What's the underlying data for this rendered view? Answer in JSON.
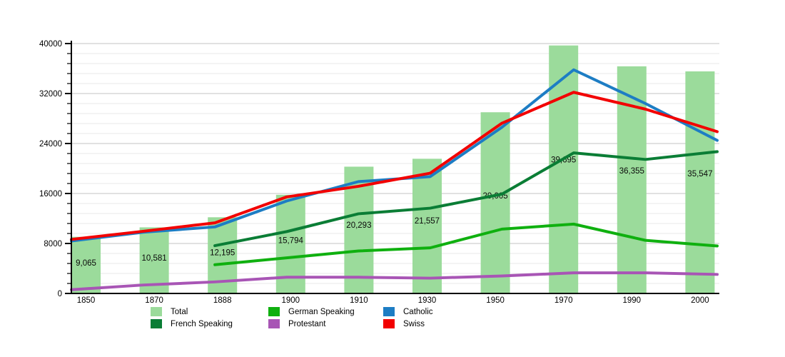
{
  "chart_data": {
    "type": "bar+line",
    "title": "",
    "xlabel": "",
    "ylabel": "",
    "ylim": [
      0,
      40000
    ],
    "y_ticks": [
      0,
      8000,
      16000,
      24000,
      32000,
      40000
    ],
    "y_tick_labels": [
      "0",
      "8000",
      "16000",
      "24000",
      "32000",
      "40000"
    ],
    "y_minor_step": 1600,
    "grid": true,
    "legend_position": "bottom",
    "x_categories": [
      "1850",
      "1870",
      "1888",
      "1900",
      "1910",
      "1930",
      "1950",
      "1970",
      "1990",
      "2000"
    ],
    "bar_series": {
      "name": "Total",
      "color": "#9bdb9b",
      "values": [
        9065,
        10581,
        12195,
        15794,
        20293,
        21557,
        29005,
        39695,
        36355,
        35547
      ],
      "labels": [
        "9,065",
        "10,581",
        "12,195",
        "15,794",
        "20,293",
        "21,557",
        "29,005",
        "39,695",
        "36,355",
        "35,547"
      ]
    },
    "line_series": [
      {
        "name": "Protestant",
        "color": "#a855b5",
        "values": [
          600,
          1350,
          1850,
          2600,
          2600,
          2450,
          2800,
          3300,
          3300,
          3050
        ]
      },
      {
        "name": "German Speaking",
        "color": "#0fb00f",
        "values": [
          null,
          null,
          4600,
          5700,
          6800,
          7300,
          10300,
          11100,
          8500,
          7600
        ]
      },
      {
        "name": "French Speaking",
        "color": "#0a7d35",
        "values": [
          null,
          null,
          7650,
          9900,
          12750,
          13650,
          15900,
          22500,
          21450,
          22700
        ]
      },
      {
        "name": "Catholic",
        "color": "#1d7dc4",
        "values": [
          8400,
          9800,
          10650,
          14800,
          17900,
          18700,
          26600,
          35800,
          30400,
          24500
        ]
      },
      {
        "name": "Swiss",
        "color": "#f20000",
        "values": [
          8650,
          9950,
          11300,
          15450,
          17150,
          19250,
          27250,
          32200,
          29500,
          25900
        ]
      }
    ],
    "legend_items": [
      {
        "label": "Total",
        "color": "#9bdb9b"
      },
      {
        "label": "German Speaking",
        "color": "#0fb00f"
      },
      {
        "label": "Catholic",
        "color": "#1d7dc4"
      },
      {
        "label": "French Speaking",
        "color": "#0a7d35"
      },
      {
        "label": "Protestant",
        "color": "#a855b5"
      },
      {
        "label": "Swiss",
        "color": "#f20000"
      }
    ],
    "colors": {
      "major_grid": "#c3c3c3",
      "minor_grid": "#e9e9e9",
      "axis": "#000000",
      "text": "#000000"
    }
  }
}
